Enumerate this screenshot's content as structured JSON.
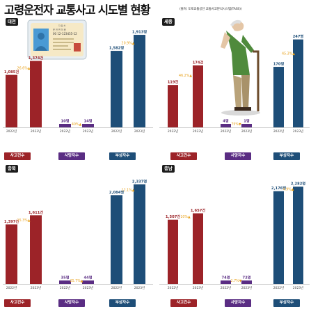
{
  "header": {
    "title": "고령운전자 교통사고 시도별 현황",
    "source": "(출처: 도로교통공단 교통사고분석시스템(TASS))"
  },
  "colors": {
    "accident": "#9c2328",
    "death": "#5a2d83",
    "injury": "#1e4e78",
    "pct_label": "#e8a21c",
    "axis": "#cccccc"
  },
  "legend": {
    "accident": "사고건수",
    "death": "사망자수",
    "injury": "부상자수"
  },
  "license_card": {
    "lines": [
      "자 동 차",
      "운 전 면 허 증",
      "00 12-123455-12"
    ]
  },
  "chart_data": [
    {
      "type": "bar",
      "region": "대전",
      "categories": [
        "2022년",
        "2023년",
        "2022년",
        "2023년",
        "2022년",
        "2023년"
      ],
      "groups": [
        "사고건수",
        "사망자수",
        "부상자수"
      ],
      "values": [
        1085,
        1374,
        10,
        14,
        1582,
        1913
      ],
      "value_labels": [
        "1,085건",
        "1,374건",
        "10명",
        "14명",
        "1,582명",
        "1,913명"
      ],
      "changes": [
        "26.6%▲",
        "40%▲",
        "20.9%▲"
      ],
      "scale_max": 2000
    },
    {
      "type": "bar",
      "region": "세종",
      "categories": [
        "2022년",
        "2023년",
        "2022년",
        "2023년",
        "2022년",
        "2023년"
      ],
      "groups": [
        "사고건수",
        "사망자수",
        "부상자수"
      ],
      "values": [
        119,
        174,
        4,
        1,
        170,
        247
      ],
      "value_labels": [
        "119건",
        "174건",
        "4명",
        "1명",
        "170명",
        "247명"
      ],
      "changes": [
        "46.2%▲",
        "75%▼",
        "45.3%▲"
      ],
      "scale_max": 260
    },
    {
      "type": "bar",
      "region": "충북",
      "categories": [
        "2022년",
        "2023년",
        "2022년",
        "2023년",
        "2022년",
        "2023년"
      ],
      "groups": [
        "사고건수",
        "사망자수",
        "부상자수"
      ],
      "values": [
        1397,
        1611,
        35,
        44,
        2084,
        2337
      ],
      "value_labels": [
        "1,397건",
        "1,611건",
        "35명",
        "44명",
        "2,084명",
        "2,337명"
      ],
      "changes": [
        "15.3%▲",
        "25.7%▲",
        "12.1%▲"
      ],
      "scale_max": 2400
    },
    {
      "type": "bar",
      "region": "충남",
      "categories": [
        "2022년",
        "2023년",
        "2022년",
        "2023년",
        "2022년",
        "2023년"
      ],
      "groups": [
        "사고건수",
        "사망자수",
        "부상자수"
      ],
      "values": [
        1507,
        1657,
        74,
        72,
        2176,
        2282
      ],
      "value_labels": [
        "1,507건",
        "1,657건",
        "74명",
        "72명",
        "2,176명",
        "2,282명"
      ],
      "changes": [
        "10%▲",
        "2.7%▼",
        "4.9%▲"
      ],
      "scale_max": 2400
    }
  ]
}
